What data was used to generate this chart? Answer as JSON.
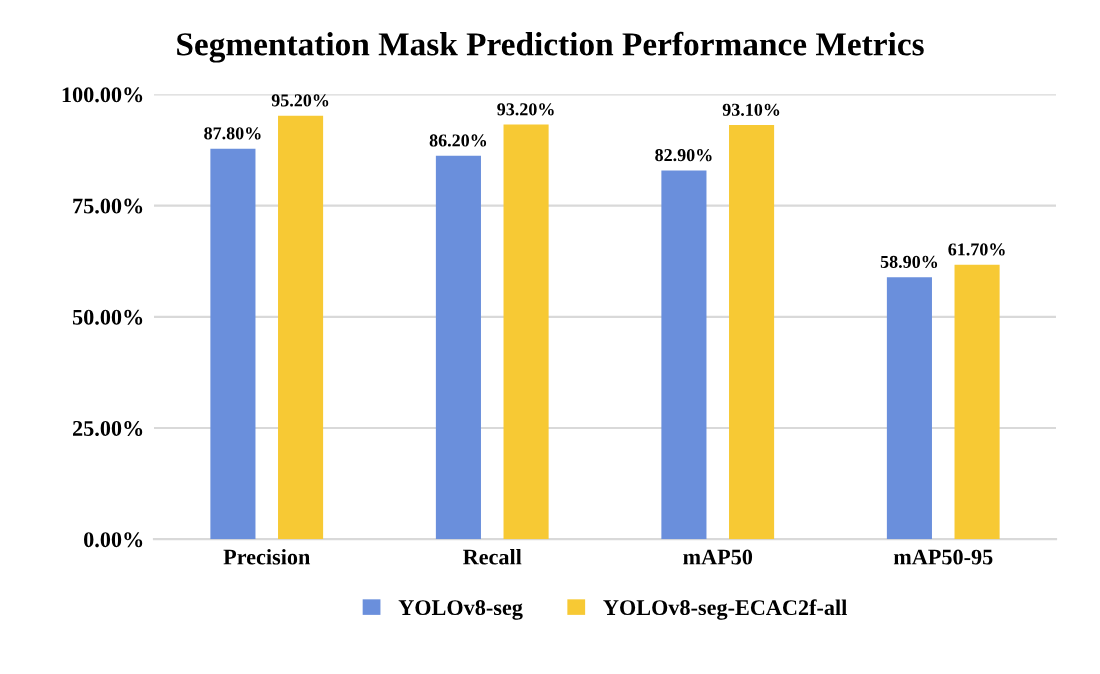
{
  "chart_data": {
    "type": "bar",
    "title": "Segmentation Mask Prediction Performance Metrics",
    "categories": [
      "Precision",
      "Recall",
      "mAP50",
      "mAP50-95"
    ],
    "series": [
      {
        "name": "YOLOv8-seg",
        "color": "#6a8fdc",
        "values": [
          87.8,
          86.2,
          82.9,
          58.9
        ],
        "value_labels": [
          "87.80%",
          "86.20%",
          "82.90%",
          "58.90%"
        ]
      },
      {
        "name": "YOLOv8-seg-ECAC2f-all",
        "color": "#f7c934",
        "values": [
          95.2,
          93.2,
          93.1,
          61.7
        ],
        "value_labels": [
          "95.20%",
          "93.20%",
          "93.10%",
          "61.70%"
        ]
      }
    ],
    "ylim": [
      0,
      100
    ],
    "yticks": [
      {
        "value": 0,
        "label": "0.00%"
      },
      {
        "value": 25,
        "label": "25.00%"
      },
      {
        "value": 50,
        "label": "50.00%"
      },
      {
        "value": 75,
        "label": "75.00%"
      },
      {
        "value": 100,
        "label": "100.00%"
      }
    ],
    "grid": "y",
    "legend": "bottom"
  }
}
